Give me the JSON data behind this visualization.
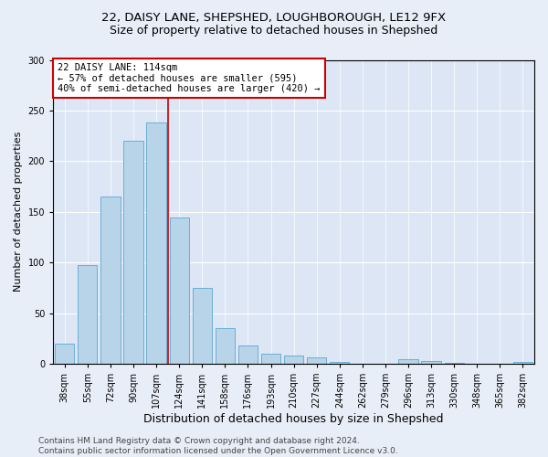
{
  "title1": "22, DAISY LANE, SHEPSHED, LOUGHBOROUGH, LE12 9FX",
  "title2": "Size of property relative to detached houses in Shepshed",
  "xlabel": "Distribution of detached houses by size in Shepshed",
  "ylabel": "Number of detached properties",
  "footer1": "Contains HM Land Registry data © Crown copyright and database right 2024.",
  "footer2": "Contains public sector information licensed under the Open Government Licence v3.0.",
  "categories": [
    "38sqm",
    "55sqm",
    "72sqm",
    "90sqm",
    "107sqm",
    "124sqm",
    "141sqm",
    "158sqm",
    "176sqm",
    "193sqm",
    "210sqm",
    "227sqm",
    "244sqm",
    "262sqm",
    "279sqm",
    "296sqm",
    "313sqm",
    "330sqm",
    "348sqm",
    "365sqm",
    "382sqm"
  ],
  "values": [
    20,
    97,
    165,
    220,
    238,
    144,
    75,
    35,
    18,
    10,
    8,
    6,
    2,
    0,
    0,
    4,
    3,
    1,
    0,
    0,
    2
  ],
  "bar_color": "#b8d4e8",
  "bar_edge_color": "#6baed6",
  "annotation_text": "22 DAISY LANE: 114sqm\n← 57% of detached houses are smaller (595)\n40% of semi-detached houses are larger (420) →",
  "vline_color": "#cc0000",
  "box_edge_color": "#cc0000",
  "ylim": [
    0,
    300
  ],
  "yticks": [
    0,
    50,
    100,
    150,
    200,
    250,
    300
  ],
  "background_color": "#dce6f5",
  "grid_color": "#ffffff",
  "fig_facecolor": "#e8eef8",
  "title1_fontsize": 9.5,
  "title2_fontsize": 9,
  "xlabel_fontsize": 9,
  "ylabel_fontsize": 8,
  "tick_fontsize": 7,
  "annotation_fontsize": 7.5,
  "footer_fontsize": 6.5
}
